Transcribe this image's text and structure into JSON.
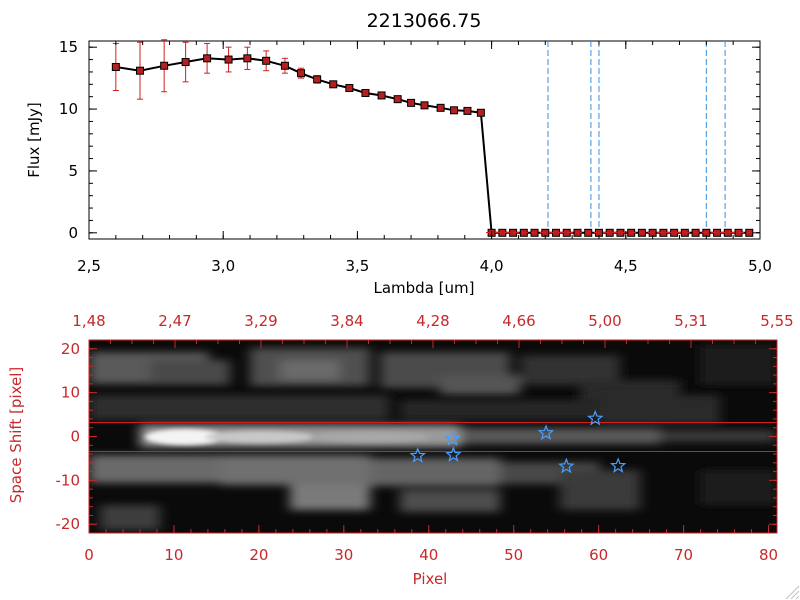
{
  "colors": {
    "data_line": "#000000",
    "marker": "#b51f1f",
    "error_bar": "#d11f1f",
    "vline": "#3b8ee0",
    "frame": "#d11f1f",
    "star": "#4a9eff",
    "axis_red": "#c8282b"
  },
  "chart_data": [
    {
      "type": "line",
      "title": "2213066.75",
      "xlabel": "Lambda [um]",
      "ylabel": "Flux [mJy]",
      "xlim": [
        2.5,
        5.0
      ],
      "ylim": [
        -0.5,
        15.5
      ],
      "xtick_labels": [
        "2.5",
        "3.0",
        "3.5",
        "4.0",
        "4.5",
        "5.0"
      ],
      "ytick_labels": [
        "0",
        "5",
        "10",
        "15"
      ],
      "series": [
        {
          "name": "Flux",
          "x": [
            2.6,
            2.69,
            2.78,
            2.86,
            2.94,
            3.02,
            3.09,
            3.16,
            3.23,
            3.29,
            3.35,
            3.41,
            3.47,
            3.53,
            3.59,
            3.65,
            3.7,
            3.75,
            3.81,
            3.86,
            3.91,
            3.96,
            4.0,
            4.04,
            4.08,
            4.12,
            4.16,
            4.2,
            4.24,
            4.28,
            4.32,
            4.36,
            4.4,
            4.44,
            4.48,
            4.52,
            4.56,
            4.6,
            4.64,
            4.68,
            4.72,
            4.76,
            4.8,
            4.84,
            4.88,
            4.92,
            4.96
          ],
          "y": [
            13.4,
            13.1,
            13.5,
            13.8,
            14.1,
            14.0,
            14.1,
            13.9,
            13.5,
            12.9,
            12.4,
            12.0,
            11.7,
            11.3,
            11.1,
            10.8,
            10.5,
            10.3,
            10.1,
            9.9,
            9.85,
            9.7,
            0.0,
            0.0,
            0.0,
            0.0,
            0.0,
            0.0,
            0.0,
            0.0,
            0.0,
            0.0,
            0.0,
            0.0,
            0.0,
            0.0,
            0.0,
            0.0,
            0.0,
            0.0,
            0.0,
            0.0,
            0.0,
            0.0,
            0.0,
            0.0,
            0.0
          ],
          "yerr": [
            1.9,
            2.3,
            2.1,
            1.6,
            1.2,
            1.0,
            0.9,
            0.8,
            0.6,
            0.4,
            0.3,
            0.2,
            0.15,
            0.15,
            0.15,
            0.15,
            0.15,
            0.15,
            0.1,
            0.1,
            0.1,
            0.1,
            0,
            0,
            0,
            0,
            0,
            0,
            0,
            0,
            0,
            0,
            0,
            0,
            0,
            0,
            0,
            0,
            0,
            0,
            0,
            0,
            0,
            0,
            0,
            0,
            0
          ]
        }
      ],
      "vertical_lines_x": [
        4.21,
        4.37,
        4.4,
        4.8,
        4.87
      ]
    },
    {
      "type": "heatmap",
      "xlabel": "Pixel",
      "ylabel": "Space Shift [pixel]",
      "xlim": [
        0,
        81
      ],
      "ylim": [
        -22,
        22
      ],
      "xtick_labels": [
        "0",
        "10",
        "20",
        "30",
        "40",
        "50",
        "60",
        "70",
        "80"
      ],
      "ytick_labels": [
        "-20",
        "-10",
        "0",
        "10",
        "20"
      ],
      "top_axis_tick_labels": [
        "1.48",
        "2.47",
        "3.29",
        "3.84",
        "4.28",
        "4.66",
        "5.00",
        "5.31",
        "5.55"
      ],
      "aperture_y": [
        3,
        -3
      ],
      "stars": [
        {
          "x": 42.8,
          "y": -0.5
        },
        {
          "x": 38.7,
          "y": -4.4
        },
        {
          "x": 42.9,
          "y": -4.2
        },
        {
          "x": 53.8,
          "y": 0.8
        },
        {
          "x": 59.6,
          "y": 4.1
        },
        {
          "x": 56.2,
          "y": -6.8
        },
        {
          "x": 62.3,
          "y": -6.7
        }
      ],
      "bright_features": [
        {
          "label": "central trace",
          "x_range": [
            8,
            45
          ],
          "y": 0,
          "intensity": 1.0
        },
        {
          "label": "central trace tail",
          "x_range": [
            45,
            70
          ],
          "y": 0,
          "intensity": 0.4
        },
        {
          "label": "lower band",
          "x_range": [
            0,
            60
          ],
          "y": -7,
          "intensity": 0.55
        },
        {
          "label": "upper band",
          "x_range": [
            0,
            50
          ],
          "y": 12,
          "intensity": 0.5
        }
      ]
    }
  ]
}
